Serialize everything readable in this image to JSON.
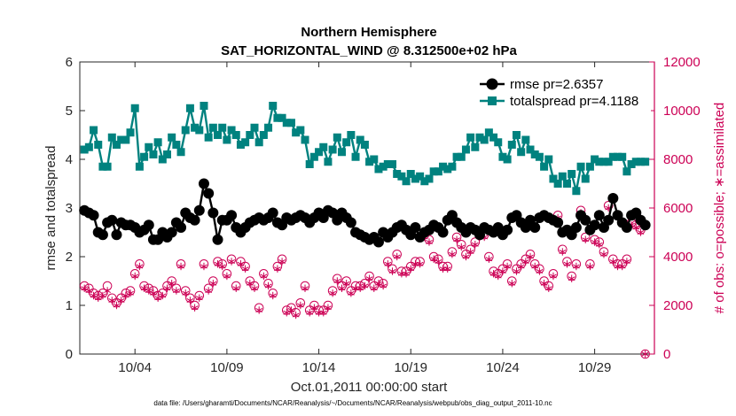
{
  "chart_data": {
    "type": "line",
    "title_line1": "Northern Hemisphere",
    "title_line2": "SAT_HORIZONTAL_WIND @ 8.312500e+02 hPa",
    "xlabel": "Oct.01,2011 00:00:00 start",
    "ylabel_left": "rmse and totalspread",
    "ylabel_right": "# of obs: o=possible; ∗=assimilated",
    "footnote": "data file: /Users/gharamti/Documents/NCAR/Reanalysis/~/Documents/NCAR/Reanalysis/webpub/obs_diag_output_2011-10.nc",
    "xlim": [
      1.0,
      32.25
    ],
    "ylim_left": [
      0,
      6
    ],
    "ylim_right": [
      0,
      12000
    ],
    "x_tick_labels": [
      "10/04",
      "10/09",
      "10/14",
      "10/19",
      "10/24",
      "10/29"
    ],
    "x_tick_values": [
      4,
      9,
      14,
      19,
      24,
      29
    ],
    "y_left_ticks": [
      "0",
      "1",
      "2",
      "3",
      "4",
      "5",
      "6"
    ],
    "y_right_ticks": [
      "0",
      "2000",
      "4000",
      "6000",
      "8000",
      "10000",
      "12000"
    ],
    "legend_position": "top-right",
    "colors": {
      "rmse": "#000000",
      "totalspread": "#00827f",
      "obs": "#cc0055"
    },
    "x_start": 1.25,
    "x_step": 0.25,
    "series": [
      {
        "name": "rmse pr=2.6357",
        "key": "rmse",
        "axis": "left",
        "values": [
          2.95,
          2.9,
          2.85,
          2.5,
          2.45,
          2.7,
          2.75,
          2.45,
          2.7,
          2.65,
          2.65,
          2.6,
          2.5,
          2.55,
          2.65,
          2.35,
          2.35,
          2.5,
          2.4,
          2.5,
          2.7,
          2.6,
          2.9,
          2.8,
          2.75,
          2.95,
          3.5,
          3.3,
          2.9,
          2.35,
          2.75,
          2.75,
          2.85,
          2.6,
          2.5,
          2.6,
          2.7,
          2.75,
          2.8,
          2.75,
          2.8,
          2.9,
          2.7,
          2.65,
          2.8,
          2.75,
          2.8,
          2.85,
          2.8,
          2.7,
          2.8,
          2.9,
          2.8,
          2.95,
          2.9,
          2.75,
          2.9,
          2.8,
          2.7,
          2.5,
          2.45,
          2.4,
          2.35,
          2.4,
          2.3,
          2.5,
          2.4,
          2.5,
          2.6,
          2.65,
          2.55,
          2.45,
          2.6,
          2.4,
          2.5,
          2.55,
          2.65,
          2.6,
          2.5,
          2.75,
          2.85,
          2.7,
          2.6,
          2.5,
          2.6,
          2.55,
          2.45,
          2.6,
          2.55,
          2.5,
          2.6,
          2.45,
          2.55,
          2.8,
          2.85,
          2.7,
          2.6,
          2.75,
          2.6,
          2.8,
          2.85,
          2.8,
          2.75,
          2.7,
          2.5,
          2.55,
          2.45,
          2.6,
          2.85,
          2.75,
          2.55,
          2.65,
          2.85,
          2.6,
          2.75,
          3.2,
          2.85,
          2.7,
          2.6,
          2.85,
          2.9,
          2.75,
          2.65
        ]
      },
      {
        "name": "totalspread pr=4.1188",
        "key": "totalspread",
        "axis": "left",
        "values": [
          4.2,
          4.25,
          4.6,
          4.3,
          3.85,
          3.85,
          4.45,
          4.3,
          4.4,
          4.4,
          4.55,
          5.05,
          3.85,
          4.05,
          4.25,
          4.1,
          4.35,
          4.0,
          4.1,
          4.45,
          4.3,
          4.15,
          4.6,
          5.05,
          4.65,
          4.6,
          5.1,
          4.45,
          4.65,
          4.5,
          4.65,
          4.4,
          4.6,
          4.5,
          4.3,
          4.35,
          4.5,
          4.65,
          4.35,
          4.5,
          4.65,
          5.1,
          4.85,
          4.85,
          4.75,
          4.75,
          4.55,
          4.6,
          4.4,
          3.9,
          4.05,
          4.15,
          4.25,
          3.95,
          4.2,
          4.45,
          4.15,
          4.35,
          4.5,
          4.05,
          4.4,
          4.3,
          3.95,
          4.0,
          3.8,
          3.85,
          3.9,
          3.9,
          3.7,
          3.65,
          3.55,
          3.7,
          3.6,
          3.65,
          3.55,
          3.6,
          3.75,
          3.75,
          3.85,
          3.8,
          3.85,
          4.05,
          4.05,
          4.2,
          4.45,
          4.25,
          4.45,
          4.4,
          4.55,
          4.45,
          4.35,
          4.05,
          4.0,
          4.3,
          4.5,
          4.15,
          4.4,
          4.2,
          4.1,
          4.05,
          3.85,
          4.0,
          3.6,
          3.5,
          3.65,
          3.5,
          3.7,
          3.35,
          3.85,
          3.6,
          3.85,
          4.0,
          3.95,
          3.95,
          3.95,
          4.05,
          4.05,
          4.05,
          3.75,
          3.9,
          3.95,
          3.95,
          3.95
        ]
      },
      {
        "name": "obs possible",
        "key": "obs",
        "axis": "right",
        "values": [
          2800,
          2700,
          2500,
          2400,
          2500,
          2800,
          2300,
          2100,
          2300,
          2500,
          2600,
          3300,
          3700,
          2800,
          2700,
          2600,
          2400,
          2500,
          2800,
          3000,
          2700,
          3700,
          2600,
          2300,
          2000,
          2400,
          3700,
          2700,
          3000,
          3800,
          3700,
          3300,
          3900,
          2800,
          3800,
          3600,
          3000,
          2800,
          1900,
          3300,
          2900,
          2500,
          3600,
          3900,
          1800,
          1900,
          1700,
          2100,
          2800,
          1800,
          2000,
          1800,
          1800,
          2000,
          2600,
          3100,
          2800,
          3000,
          2600,
          2800,
          2800,
          2900,
          3200,
          2800,
          3000,
          2900,
          3800,
          3500,
          4100,
          3400,
          3400,
          3600,
          3800,
          3800,
          4900,
          4700,
          4000,
          3900,
          3600,
          3600,
          4200,
          4800,
          4500,
          4100,
          4300,
          4600,
          4900,
          4900,
          4000,
          3400,
          3300,
          3500,
          3700,
          3000,
          3500,
          3700,
          3900,
          4100,
          3700,
          3500,
          3000,
          2800,
          3300,
          5700,
          4300,
          3800,
          3200,
          3700,
          5900,
          4800,
          3700,
          4700,
          4600,
          4200,
          6100,
          3900,
          3700,
          3700,
          3900,
          5400,
          5300,
          5100,
          0
        ]
      },
      {
        "name": "obs assimilated",
        "key": "obs_assim",
        "axis": "right",
        "values": [
          2700,
          2600,
          2400,
          2300,
          2400,
          2600,
          2200,
          2000,
          2200,
          2400,
          2500,
          3200,
          3600,
          2700,
          2600,
          2500,
          2300,
          2400,
          2700,
          2900,
          2600,
          3600,
          2500,
          2200,
          1900,
          2300,
          3600,
          2600,
          2900,
          3700,
          3600,
          3200,
          3800,
          2700,
          3700,
          3500,
          2900,
          2700,
          1800,
          3200,
          2800,
          2400,
          3500,
          3800,
          1700,
          1800,
          1600,
          2000,
          2700,
          1700,
          1900,
          1700,
          1700,
          1900,
          2500,
          3000,
          2700,
          2900,
          2500,
          2700,
          2700,
          2800,
          3100,
          2700,
          2900,
          2800,
          3700,
          3400,
          4000,
          3300,
          3300,
          3500,
          3700,
          3700,
          4800,
          4600,
          3900,
          3800,
          3500,
          3500,
          4100,
          4700,
          4400,
          4000,
          4200,
          4500,
          4800,
          4800,
          3900,
          3300,
          3200,
          3400,
          3600,
          2900,
          3400,
          3600,
          3800,
          4000,
          3600,
          3400,
          2900,
          2700,
          3200,
          5600,
          4200,
          3700,
          3100,
          3600,
          5800,
          4700,
          3600,
          4600,
          4500,
          4100,
          6000,
          3800,
          3600,
          3600,
          3800,
          5300,
          5200,
          5000,
          0
        ]
      }
    ],
    "legend": [
      {
        "label": "rmse pr=2.6357",
        "key": "rmse"
      },
      {
        "label": "totalspread pr=4.1188",
        "key": "totalspread"
      }
    ]
  }
}
